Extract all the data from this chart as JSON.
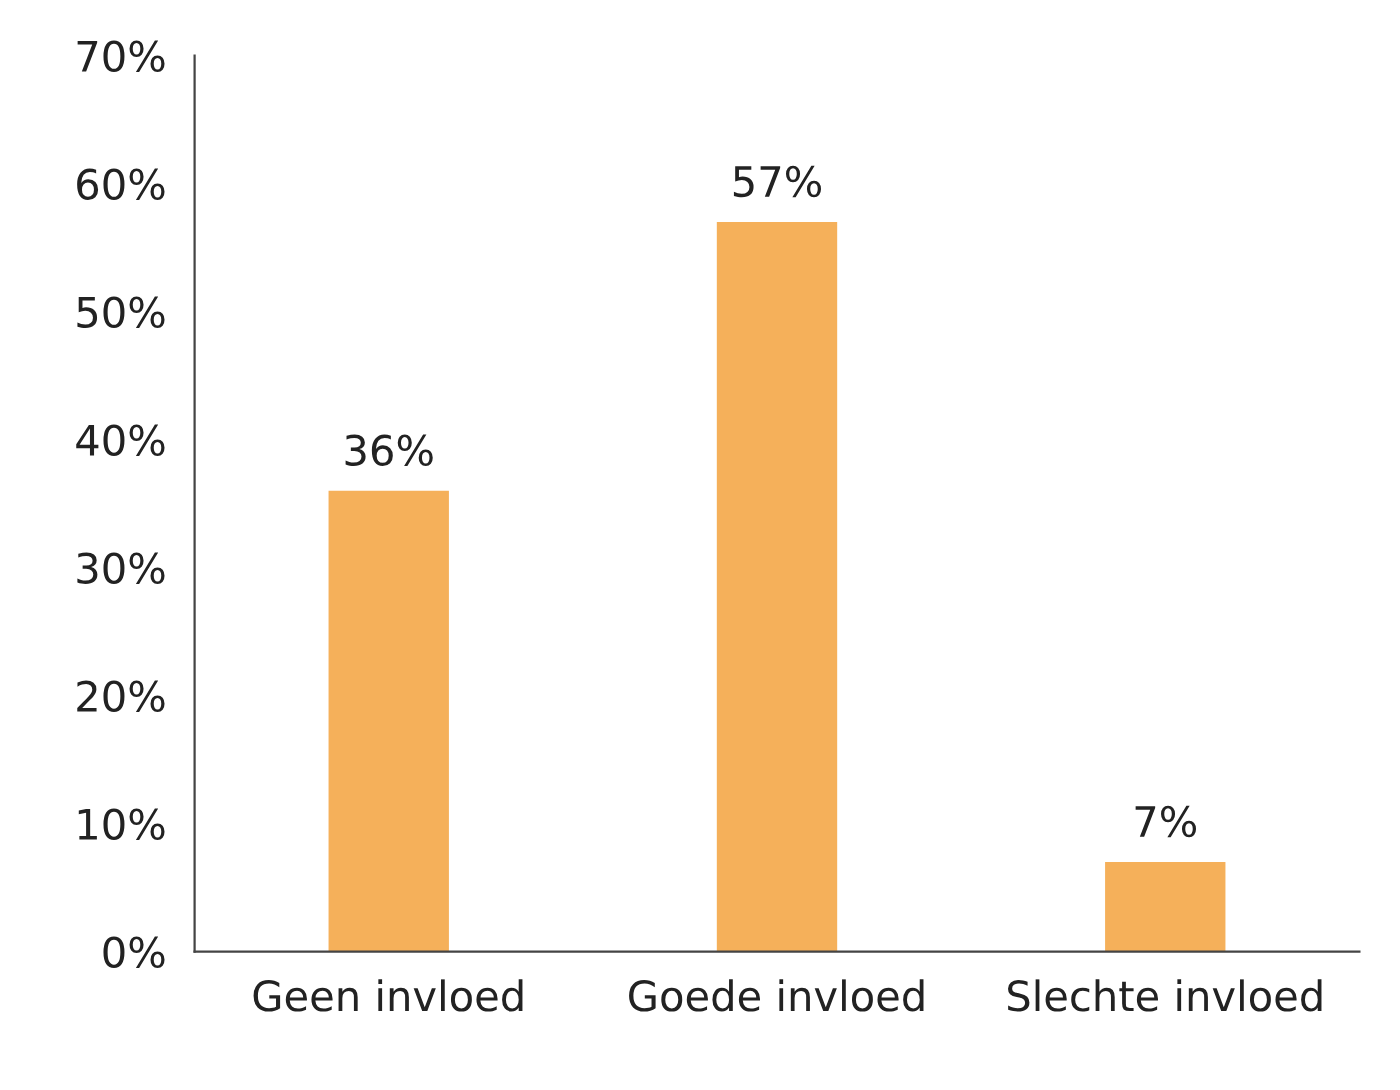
{
  "chart_data": {
    "type": "bar",
    "categories": [
      "Geen invloed",
      "Goede invloed",
      "Slechte invloed"
    ],
    "values": [
      36,
      57,
      7
    ],
    "color": "#f5b05a",
    "value_labels": [
      "36%",
      "57%",
      "7%"
    ],
    "ylim": [
      0,
      70
    ],
    "yticks": [
      {
        "value": 0,
        "label": "0%"
      },
      {
        "value": 10,
        "label": "10%"
      },
      {
        "value": 20,
        "label": "20%"
      },
      {
        "value": 30,
        "label": "30%"
      },
      {
        "value": 40,
        "label": "40%"
      },
      {
        "value": 50,
        "label": "50%"
      },
      {
        "value": 60,
        "label": "60%"
      },
      {
        "value": 70,
        "label": "70%"
      }
    ],
    "grid": false
  }
}
